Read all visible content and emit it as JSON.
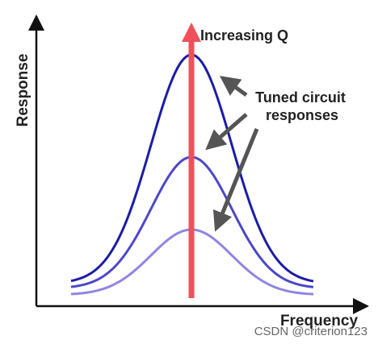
{
  "axes": {
    "y_label": "Response",
    "x_label": "Frequency"
  },
  "annotations": {
    "increasing_q": "Increasing Q",
    "tuned_circuit": [
      "Tuned circuit",
      "responses"
    ]
  },
  "watermark": "CSDN @criterion123"
}
